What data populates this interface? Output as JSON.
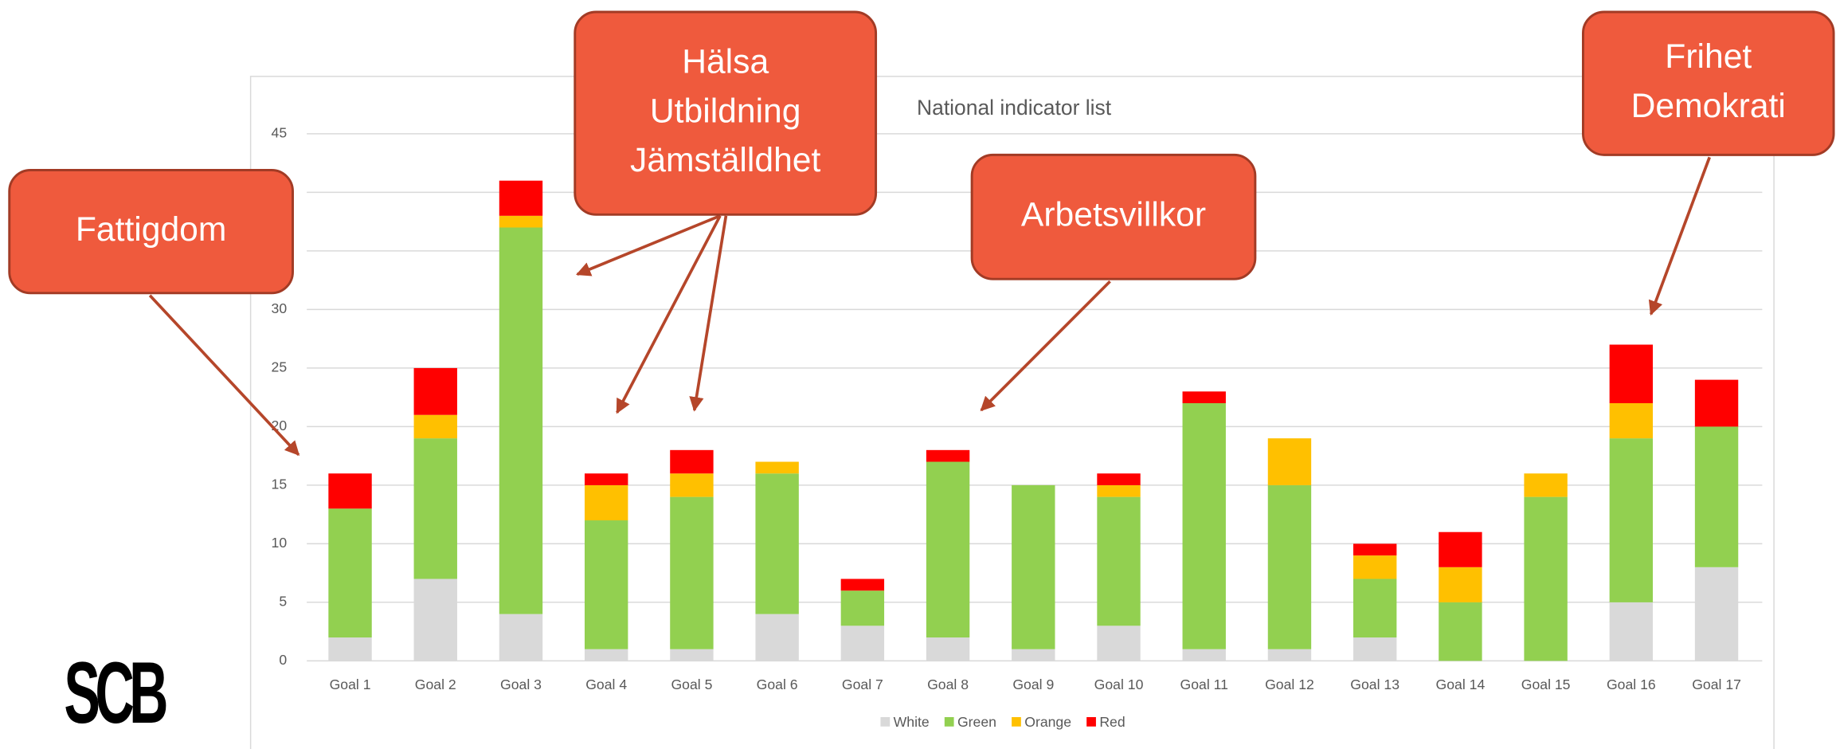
{
  "chart_data": {
    "type": "stacked_bar",
    "title": "National indicator list",
    "categories": [
      "Goal 1",
      "Goal 2",
      "Goal 3",
      "Goal 4",
      "Goal 5",
      "Goal 6",
      "Goal 7",
      "Goal 8",
      "Goal 9",
      "Goal 10",
      "Goal 11",
      "Goal 12",
      "Goal 13",
      "Goal 14",
      "Goal 15",
      "Goal 16",
      "Goal 17"
    ],
    "series": [
      {
        "name": "White",
        "color": "#d9d9d9",
        "values": [
          2,
          7,
          4,
          1,
          1,
          4,
          3,
          2,
          1,
          3,
          1,
          1,
          2,
          0,
          0,
          5,
          8
        ]
      },
      {
        "name": "Green",
        "color": "#92d050",
        "values": [
          11,
          12,
          33,
          11,
          13,
          12,
          3,
          15,
          14,
          11,
          21,
          14,
          5,
          5,
          14,
          14,
          12
        ]
      },
      {
        "name": "Orange",
        "color": "#ffc000",
        "values": [
          0,
          2,
          1,
          3,
          2,
          1,
          0,
          0,
          0,
          1,
          0,
          4,
          2,
          3,
          2,
          3,
          0
        ]
      },
      {
        "name": "Red",
        "color": "#ff0000",
        "values": [
          3,
          4,
          3,
          1,
          2,
          0,
          1,
          1,
          0,
          1,
          1,
          0,
          1,
          3,
          0,
          5,
          4
        ]
      }
    ],
    "ylim": [
      0,
      45
    ],
    "yticks": [
      0,
      5,
      10,
      15,
      20,
      25,
      30,
      35,
      40,
      45
    ],
    "grid": true,
    "legend": "bottom"
  },
  "annotations": [
    {
      "lines": [
        "Fattigdom"
      ]
    },
    {
      "lines": [
        "Hälsa",
        "Utbildning",
        "Jämställdhet"
      ]
    },
    {
      "lines": [
        "Arbetsvillkor"
      ]
    },
    {
      "lines": [
        "Frihet",
        "Demokrati"
      ]
    }
  ],
  "logo": "SCB"
}
